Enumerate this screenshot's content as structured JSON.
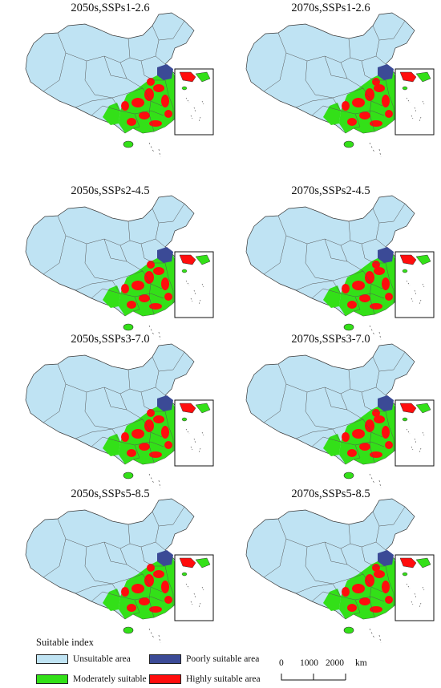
{
  "panels": [
    {
      "title": "2050s,SSPs1-2.6",
      "scenario": "SSP1-2.6",
      "period": "2050s"
    },
    {
      "title": "2070s,SSPs1-2.6",
      "scenario": "SSP1-2.6",
      "period": "2070s"
    },
    {
      "title": "2050s,SSPs2-4.5",
      "scenario": "SSP2-4.5",
      "period": "2050s"
    },
    {
      "title": "2070s,SSPs2-4.5",
      "scenario": "SSP2-4.5",
      "period": "2070s"
    },
    {
      "title": "2050s,SSPs3-7.0",
      "scenario": "SSP3-7.0",
      "period": "2050s"
    },
    {
      "title": "2070s,SSPs3-7.0",
      "scenario": "SSP3-7.0",
      "period": "2070s"
    },
    {
      "title": "2050s,SSPs5-8.5",
      "scenario": "SSP5-8.5",
      "period": "2050s"
    },
    {
      "title": "2070s,SSPs5-8.5",
      "scenario": "SSP5-8.5",
      "period": "2070s"
    }
  ],
  "legend": {
    "title": "Suitable index",
    "items": [
      {
        "label": "Unsuitable area",
        "color": "#bfe3f3"
      },
      {
        "label": "Poorly suitable area",
        "color": "#3b4a96"
      },
      {
        "label": "Moderately suitable area",
        "color": "#33e018"
      },
      {
        "label": "Highly suitable area",
        "color": "#ff0d0d"
      }
    ]
  },
  "scalebar": {
    "ticks": [
      "0",
      "1000",
      "2000"
    ],
    "unit": "km"
  }
}
